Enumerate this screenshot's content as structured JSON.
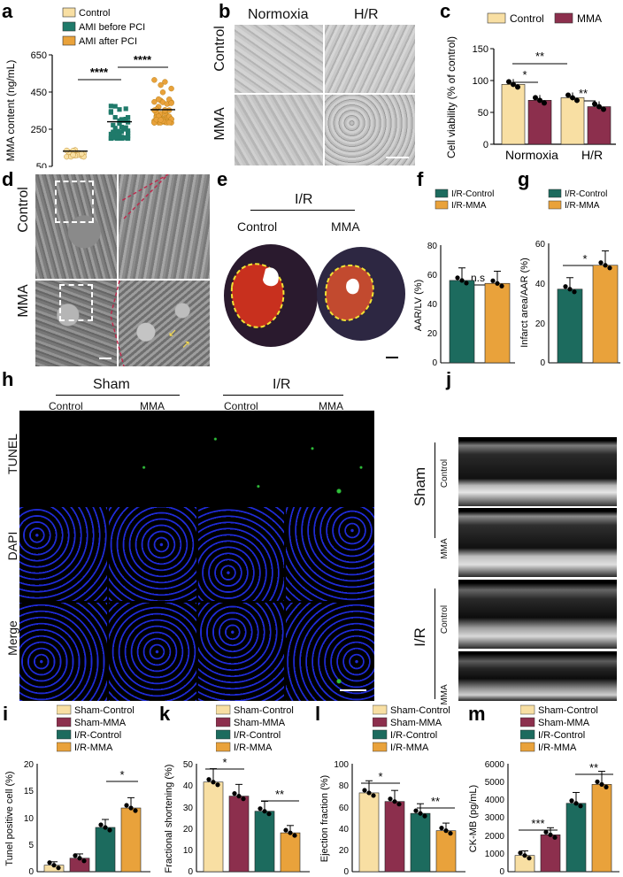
{
  "colors": {
    "cream": "#F8DFA3",
    "maroon": "#8C2F4D",
    "teal": "#1F7A6A",
    "orange": "#E9A23B",
    "dark_teal": "#1C6B5E"
  },
  "panel_letters": [
    "a",
    "b",
    "c",
    "d",
    "e",
    "f",
    "g",
    "h",
    "i",
    "j",
    "k",
    "l",
    "m"
  ],
  "panel_a": {
    "legend": [
      "Control",
      "AMI before PCI",
      "AMI after PCI"
    ],
    "ylabel": "MMA content (ng/mL)",
    "yticks": [
      "650",
      "450",
      "250",
      "50"
    ],
    "sig": [
      "****",
      "****"
    ]
  },
  "panel_b": {
    "col_labels": [
      "Normoxia",
      "H/R"
    ],
    "row_labels": [
      "Control",
      "MMA"
    ]
  },
  "panel_c": {
    "legend": [
      "Control",
      "MMA"
    ],
    "ylabel": "Cell viability (% of control)",
    "yticks": [
      "150",
      "100",
      "50",
      "0"
    ],
    "xlabels": [
      "Normoxia",
      "H/R"
    ],
    "sig": [
      "**",
      "*",
      "**"
    ]
  },
  "panel_d": {
    "row_labels": [
      "Control",
      "MMA"
    ]
  },
  "panel_e": {
    "group": "I/R",
    "col_labels": [
      "Control",
      "MMA"
    ]
  },
  "panel_f": {
    "legend": [
      "I/R-Control",
      "I/R-MMA"
    ],
    "ylabel": "AAR/LV (%)",
    "yticks": [
      "80",
      "60",
      "40",
      "20",
      "0"
    ],
    "sig": "n.s"
  },
  "panel_g": {
    "legend": [
      "I/R-Control",
      "I/R-MMA"
    ],
    "ylabel": "Infarct area/AAR (%)",
    "yticks": [
      "60",
      "40",
      "20",
      "0"
    ],
    "sig": "*"
  },
  "panel_h": {
    "groups": [
      "Sham",
      "I/R"
    ],
    "cols": [
      "Control",
      "MMA",
      "Control",
      "MMA"
    ],
    "rows": [
      "TUNEL",
      "DAPI",
      "Merge"
    ]
  },
  "panel_j": {
    "groups": [
      "Sham",
      "I/R"
    ],
    "rows": [
      "Control",
      "MMA",
      "Control",
      "MMA"
    ]
  },
  "legend4a": [
    "Sham-Control",
    "Sham-MMA",
    "I/R-Control",
    "I/R-MMA"
  ],
  "panel_i": {
    "ylabel": "Tunel positive cell (%)",
    "yticks": [
      "20",
      "15",
      "10",
      "5",
      "0"
    ],
    "sig": "*"
  },
  "panel_k": {
    "ylabel": "Fractional shortening (%)",
    "yticks": [
      "50",
      "40",
      "30",
      "20",
      "10",
      "0"
    ],
    "sig": [
      "*",
      "**"
    ]
  },
  "panel_l": {
    "ylabel": "Ejection fraction (%)",
    "yticks": [
      "100",
      "80",
      "60",
      "40",
      "20",
      "0"
    ],
    "sig": [
      "*",
      "**"
    ]
  },
  "panel_m": {
    "ylabel": "CK-MB (pg/mL)",
    "yticks": [
      "6000",
      "5000",
      "4000",
      "3000",
      "2000",
      "1000",
      "0"
    ],
    "sig": [
      "***",
      "**"
    ]
  },
  "chart_data": [
    {
      "panel": "a",
      "type": "scatter",
      "series": [
        {
          "name": "Control",
          "mean": 132
        },
        {
          "name": "AMI before PCI",
          "mean": 290
        },
        {
          "name": "AMI after PCI",
          "mean": 355
        }
      ],
      "ylim": [
        50,
        650
      ]
    },
    {
      "panel": "c",
      "type": "bar",
      "categories": [
        "Normoxia",
        "H/R"
      ],
      "series": [
        {
          "name": "Control",
          "values": [
            94,
            73
          ]
        },
        {
          "name": "MMA",
          "values": [
            69,
            59
          ]
        }
      ],
      "ylim": [
        0,
        150
      ]
    },
    {
      "panel": "f",
      "type": "bar",
      "categories": [
        "I/R-Control",
        "I/R-MMA"
      ],
      "values": [
        56,
        54
      ],
      "ylim": [
        0,
        80
      ]
    },
    {
      "panel": "g",
      "type": "bar",
      "categories": [
        "I/R-Control",
        "I/R-MMA"
      ],
      "values": [
        37,
        49
      ],
      "ylim": [
        0,
        60
      ]
    },
    {
      "panel": "i",
      "type": "bar",
      "categories": [
        "Sham-Control",
        "Sham-MMA",
        "I/R-Control",
        "I/R-MMA"
      ],
      "values": [
        1.2,
        2.5,
        8.2,
        11.8
      ],
      "ylim": [
        0,
        20
      ]
    },
    {
      "panel": "k",
      "type": "bar",
      "categories": [
        "Sham-Control",
        "Sham-MMA",
        "I/R-Control",
        "I/R-MMA"
      ],
      "values": [
        41.5,
        35,
        28,
        18
      ],
      "ylim": [
        0,
        50
      ]
    },
    {
      "panel": "l",
      "type": "bar",
      "categories": [
        "Sham-Control",
        "Sham-MMA",
        "I/R-Control",
        "I/R-MMA"
      ],
      "values": [
        73,
        65,
        54,
        38
      ],
      "ylim": [
        0,
        100
      ]
    },
    {
      "panel": "m",
      "type": "bar",
      "categories": [
        "Sham-Control",
        "Sham-MMA",
        "I/R-Control",
        "I/R-MMA"
      ],
      "values": [
        900,
        2050,
        3800,
        4850
      ],
      "ylim": [
        0,
        6000
      ]
    }
  ]
}
